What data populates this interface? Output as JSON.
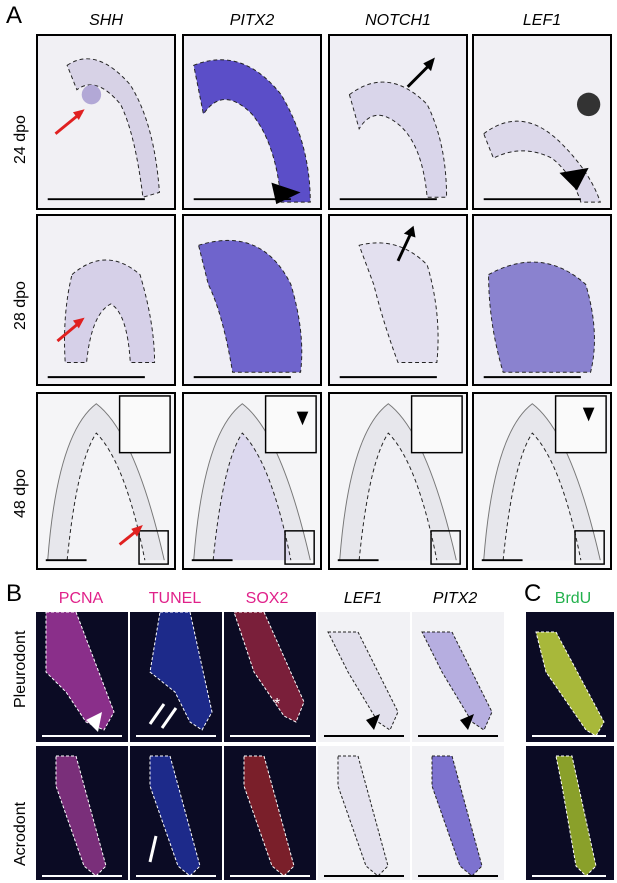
{
  "panel_a": {
    "letter": "A",
    "columns": [
      "SHH",
      "PITX2",
      "NOTCH1",
      "LEF1"
    ],
    "rows": [
      "24 dpo",
      "28 dpo",
      "48 dpo"
    ]
  },
  "panel_b": {
    "letter": "B",
    "columns": [
      {
        "label": "PCNA",
        "color": "#e0218a",
        "italic": false
      },
      {
        "label": "TUNEL",
        "color": "#e0218a",
        "italic": false
      },
      {
        "label": "SOX2",
        "color": "#e0218a",
        "italic": false
      },
      {
        "label": "LEF1",
        "color": "#000000",
        "italic": true
      },
      {
        "label": "PITX2",
        "color": "#000000",
        "italic": true
      }
    ],
    "rows": [
      "Pleurodont",
      "Acrodont"
    ],
    "asterisk": "*"
  },
  "panel_c": {
    "letter": "C",
    "label": "BrdU",
    "color": "#22b14c"
  }
}
